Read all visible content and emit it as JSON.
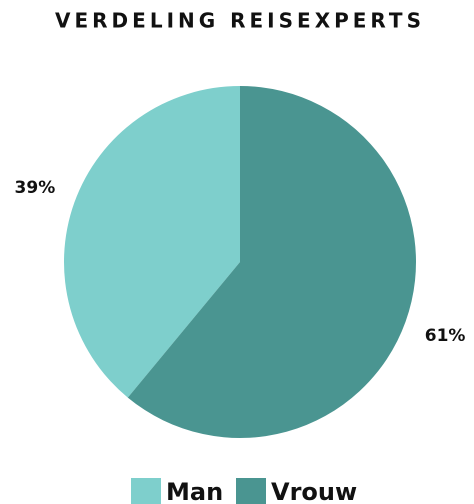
{
  "chart_data": {
    "type": "pie",
    "title": "VERDELING REISEXPERTS",
    "categories": [
      "Man",
      "Vrouw"
    ],
    "values": [
      39,
      61
    ],
    "value_labels": [
      "39%",
      "61%"
    ],
    "colors": [
      "#7ecfcc",
      "#4a9591"
    ],
    "legend": "bottom"
  }
}
